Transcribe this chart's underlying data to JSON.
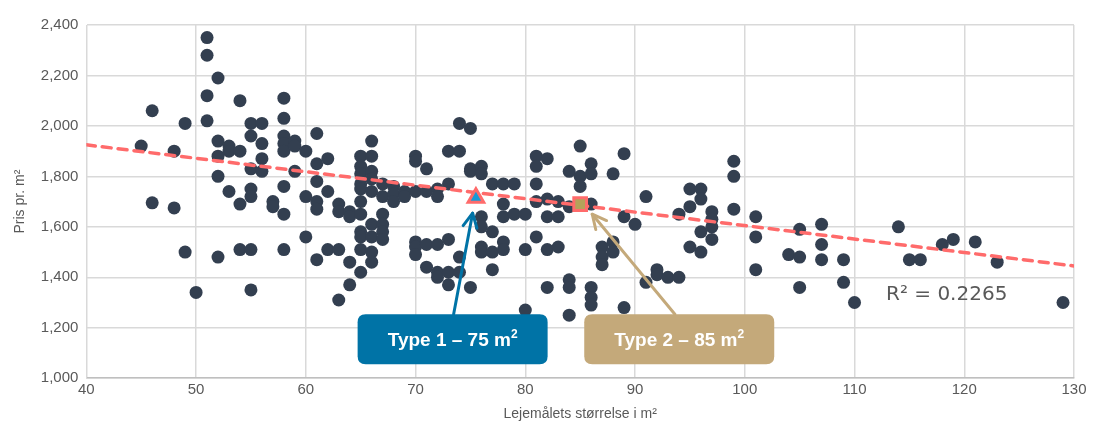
{
  "chart_data": {
    "type": "scatter",
    "xlabel": "Lejemålets størrelse i m²",
    "ylabel": "Pris pr. m²",
    "xlim": [
      40,
      130
    ],
    "xticks": [
      40,
      50,
      60,
      70,
      80,
      90,
      100,
      110,
      120,
      130
    ],
    "ylim": [
      1000,
      2400
    ],
    "yticks": [
      {
        "value": 1000,
        "label": "1,000"
      },
      {
        "value": 1200,
        "label": "1,200"
      },
      {
        "value": 1400,
        "label": "1,400"
      },
      {
        "value": 1600,
        "label": "1,600"
      },
      {
        "value": 1800,
        "label": "1,800"
      },
      {
        "value": 2000,
        "label": "2,000"
      },
      {
        "value": 2200,
        "label": "2,200"
      },
      {
        "value": 2400,
        "label": "2,400"
      }
    ],
    "grid": true,
    "legend": false,
    "marker": "circle",
    "annotations": [
      "R² = 0.2265",
      {
        "text": "Type 1 – 75 m$^{2}$",
        "x": 75.2,
        "y": 1654
      },
      {
        "text": "Type 2 – 85 m$^{2}$",
        "x": 86.1,
        "y": 1650
      }
    ],
    "series": [
      {
        "color": "#333f50",
        "x": [
          45,
          46,
          46,
          48,
          48,
          49,
          49,
          50,
          51,
          51,
          51,
          51,
          52,
          52,
          52,
          52,
          52,
          53,
          53,
          53,
          54,
          54,
          54,
          54,
          55,
          55,
          55,
          55,
          55,
          55,
          55,
          56,
          56,
          56,
          56,
          57,
          57,
          58,
          58,
          58,
          58,
          58,
          58,
          58,
          58,
          59,
          59,
          59,
          60,
          60,
          60,
          61,
          61,
          61,
          61,
          61,
          61,
          62,
          62,
          62,
          63,
          63,
          63,
          63,
          64,
          64,
          64,
          64,
          65,
          65,
          65,
          65,
          65,
          65,
          65,
          65,
          65,
          65,
          65,
          66,
          66,
          66,
          66,
          66,
          66,
          66,
          66,
          66,
          67,
          67,
          67,
          67,
          67,
          67,
          68,
          68,
          68,
          69,
          69,
          70,
          70,
          70,
          70,
          70,
          70,
          71,
          71,
          71,
          71,
          72,
          72,
          72,
          72,
          72,
          73,
          73,
          73,
          73,
          73,
          74,
          74,
          74,
          74,
          75,
          75,
          75,
          75,
          76,
          76,
          76,
          76,
          76,
          76,
          77,
          77,
          77,
          77,
          78,
          78,
          78,
          78,
          78,
          79,
          79,
          80,
          80,
          80,
          81,
          81,
          81,
          81,
          81,
          82,
          82,
          82,
          82,
          82,
          83,
          83,
          83,
          84,
          84,
          84,
          84,
          84,
          85,
          85,
          85,
          86,
          86,
          86,
          86,
          86,
          86,
          87,
          87,
          87,
          88,
          88,
          88,
          89,
          89,
          89,
          90,
          91,
          91,
          92,
          92,
          93,
          94,
          94,
          95,
          95,
          95,
          96,
          96,
          96,
          96,
          97,
          97,
          97,
          97,
          99,
          99,
          99,
          101,
          101,
          101,
          104,
          105,
          105,
          105,
          107,
          107,
          107,
          109,
          109,
          110,
          114,
          115,
          116,
          118,
          119,
          121,
          123,
          129
        ],
        "values": [
          1920,
          2060,
          1695,
          1900,
          1675,
          2010,
          1500,
          1340,
          2350,
          2280,
          2120,
          2020,
          2190,
          1940,
          1880,
          1800,
          1480,
          1920,
          1900,
          1740,
          2100,
          1900,
          1690,
          1510,
          2010,
          1960,
          1830,
          1750,
          1720,
          1510,
          1350,
          2010,
          1930,
          1870,
          1820,
          1700,
          1680,
          2110,
          2030,
          1960,
          1930,
          1900,
          1760,
          1650,
          1510,
          1940,
          1920,
          1820,
          1900,
          1720,
          1560,
          1970,
          1850,
          1780,
          1700,
          1670,
          1470,
          1870,
          1740,
          1510,
          1690,
          1660,
          1510,
          1310,
          1660,
          1640,
          1460,
          1370,
          1880,
          1840,
          1810,
          1770,
          1750,
          1700,
          1650,
          1580,
          1560,
          1510,
          1420,
          1940,
          1880,
          1820,
          1790,
          1740,
          1610,
          1560,
          1500,
          1460,
          1770,
          1720,
          1650,
          1610,
          1580,
          1550,
          1760,
          1730,
          1700,
          1740,
          1720,
          1880,
          1860,
          1740,
          1540,
          1520,
          1490,
          1830,
          1740,
          1530,
          1440,
          1750,
          1720,
          1530,
          1420,
          1400,
          1900,
          1770,
          1550,
          1420,
          1370,
          2010,
          1900,
          1480,
          1420,
          1990,
          1830,
          1820,
          1360,
          1840,
          1810,
          1640,
          1600,
          1520,
          1500,
          1770,
          1580,
          1500,
          1430,
          1770,
          1690,
          1640,
          1540,
          1510,
          1770,
          1650,
          1650,
          1510,
          1270,
          1880,
          1840,
          1770,
          1700,
          1560,
          1870,
          1710,
          1640,
          1510,
          1360,
          1700,
          1640,
          1520,
          1820,
          1680,
          1390,
          1360,
          1250,
          1920,
          1800,
          1760,
          1850,
          1810,
          1690,
          1360,
          1320,
          1290,
          1520,
          1480,
          1450,
          1810,
          1540,
          1500,
          1890,
          1640,
          1280,
          1610,
          1720,
          1380,
          1430,
          1410,
          1400,
          1650,
          1400,
          1750,
          1680,
          1520,
          1750,
          1710,
          1580,
          1500,
          1660,
          1630,
          1600,
          1550,
          1860,
          1800,
          1670,
          1640,
          1560,
          1430,
          1490,
          1590,
          1480,
          1360,
          1610,
          1530,
          1470,
          1470,
          1380,
          1300,
          1600,
          1470,
          1470,
          1530,
          1550,
          1540,
          1460,
          1300
        ]
      },
      {
        "type": "line",
        "color": "#ff6b6b",
        "line_style": "dashed",
        "marker": "none",
        "x": [
          40,
          130
        ],
        "values": [
          1925,
          1445
        ]
      },
      {
        "type": "scatter",
        "color": "#1a9ad6",
        "marker": "triangle",
        "x": [
          75.5
        ],
        "values": [
          1715
        ]
      },
      {
        "type": "scatter",
        "color": "#b5a25a",
        "marker": "square",
        "x": [
          85
        ],
        "values": [
          1690
        ]
      }
    ]
  }
}
